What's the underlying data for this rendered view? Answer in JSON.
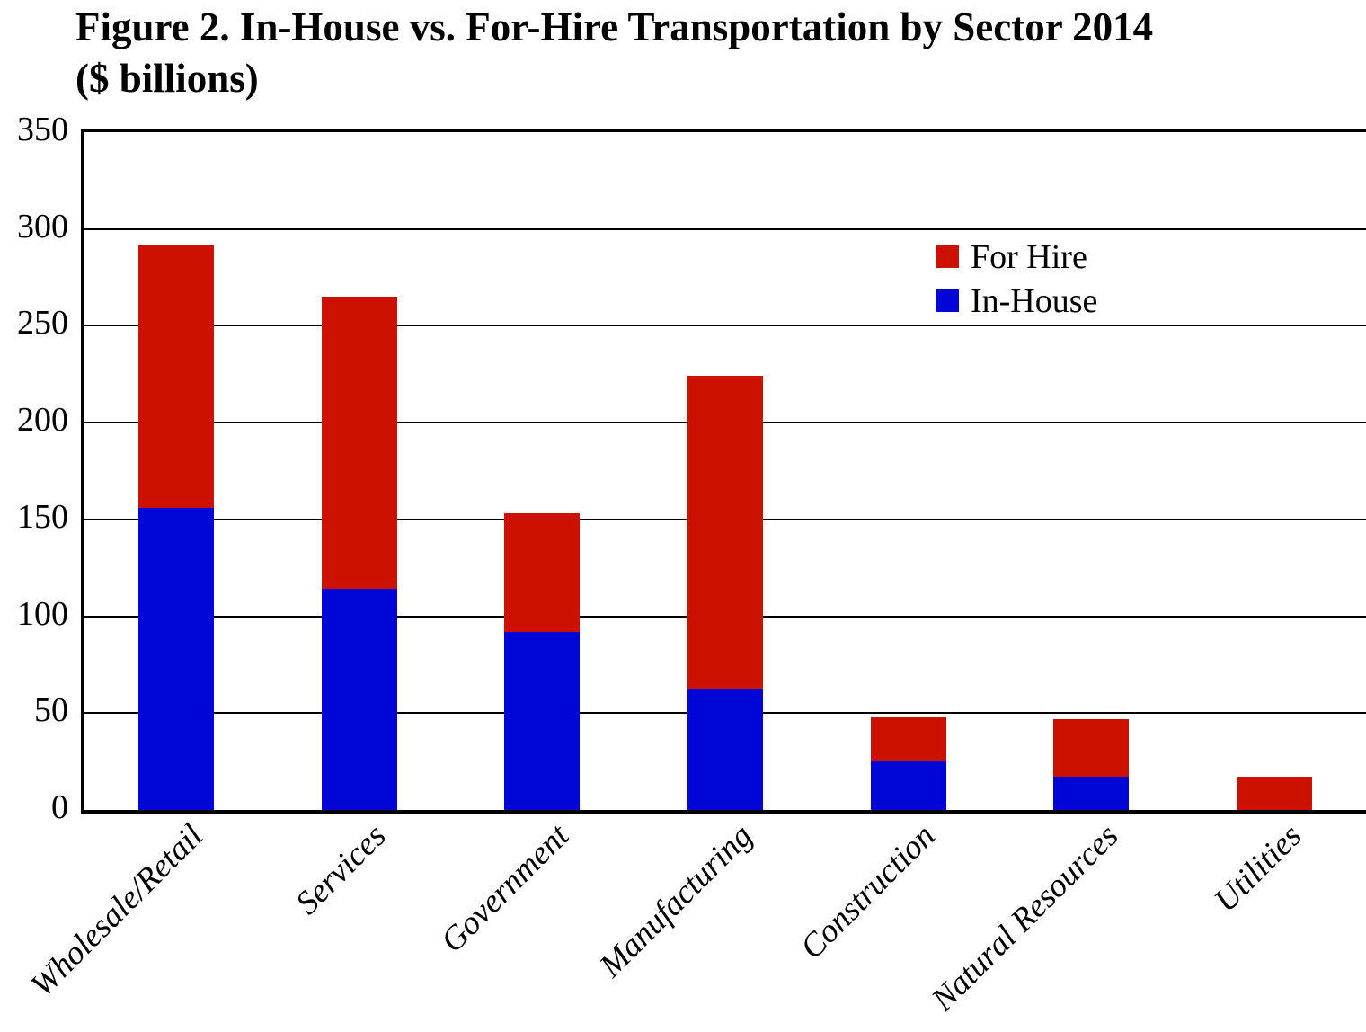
{
  "figure": {
    "title_line1": "Figure 2. In-House vs. For-Hire Transportation by Sector 2014",
    "title_line2": "($ billions)"
  },
  "colors": {
    "for_hire": "#CC1100",
    "in_house": "#0006D6",
    "axis": "#000000",
    "grid": "#000000",
    "background": "#FFFFFF",
    "text": "#000000"
  },
  "chart_data": {
    "type": "bar",
    "stacked": true,
    "title": "Figure 2. In-House vs. For-Hire Transportation by Sector 2014 ($ billions)",
    "units": "$ billions",
    "xlabel": "",
    "ylabel": "",
    "categories": [
      "Wholesale/Retail",
      "Services",
      "Government",
      "Manufacturing",
      "Construction",
      "Natural Resources",
      "Utilities"
    ],
    "series": [
      {
        "name": "In-House",
        "color": "#0006D6",
        "values": [
          156,
          114,
          92,
          62,
          25,
          17,
          0
        ]
      },
      {
        "name": "For Hire",
        "color": "#CC1100",
        "values": [
          136,
          151,
          61,
          162,
          23,
          30,
          17
        ]
      }
    ],
    "stack_totals": [
      292,
      265,
      153,
      224,
      48,
      47,
      17
    ],
    "ylim": [
      0,
      350
    ],
    "yticks": [
      0,
      50,
      100,
      150,
      200,
      250,
      300,
      350
    ],
    "grid": "horizontal",
    "legend": [
      {
        "label": "For Hire",
        "color": "#CC1100"
      },
      {
        "label": "In-House",
        "color": "#0006D6"
      }
    ],
    "legend_position": "inside-upper-right"
  }
}
